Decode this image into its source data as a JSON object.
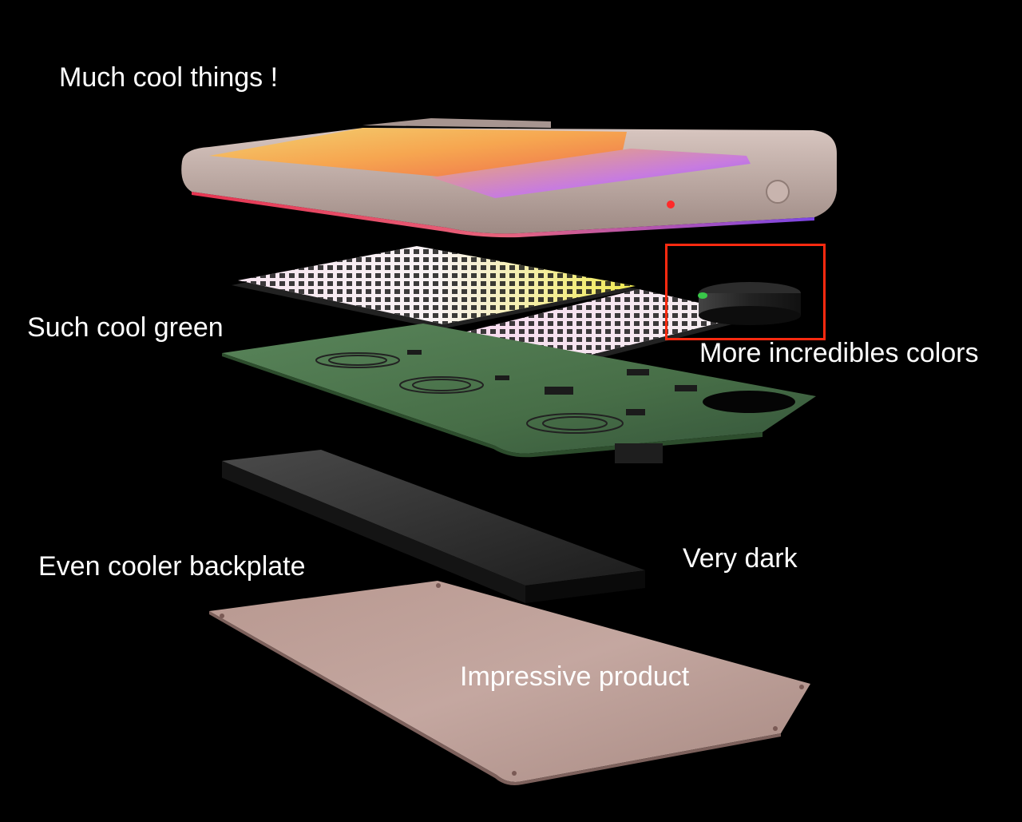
{
  "labels": {
    "top": "Much cool things !",
    "green": "Such cool green",
    "colors": "More incredibles colors",
    "backplate": "Even cooler backplate",
    "dark": "Very dark",
    "product": "Impressive product"
  },
  "colors": {
    "background": "#000000",
    "text": "#ffffff",
    "highlight": "#ff2a10",
    "enclosure": "#b8a39b",
    "screen_warm": "#f6a650",
    "screen_violet": "#9a5cf0",
    "keypad_yellow": "#f2f000",
    "keypad_white": "#f4e8ee",
    "pcb_green": "#3f6a3c",
    "backplate_dark": "#2a2a2a",
    "base_plate": "#b99a92"
  },
  "icons": {
    "knob": "rotary-knob-icon",
    "led": "red-led-icon"
  }
}
